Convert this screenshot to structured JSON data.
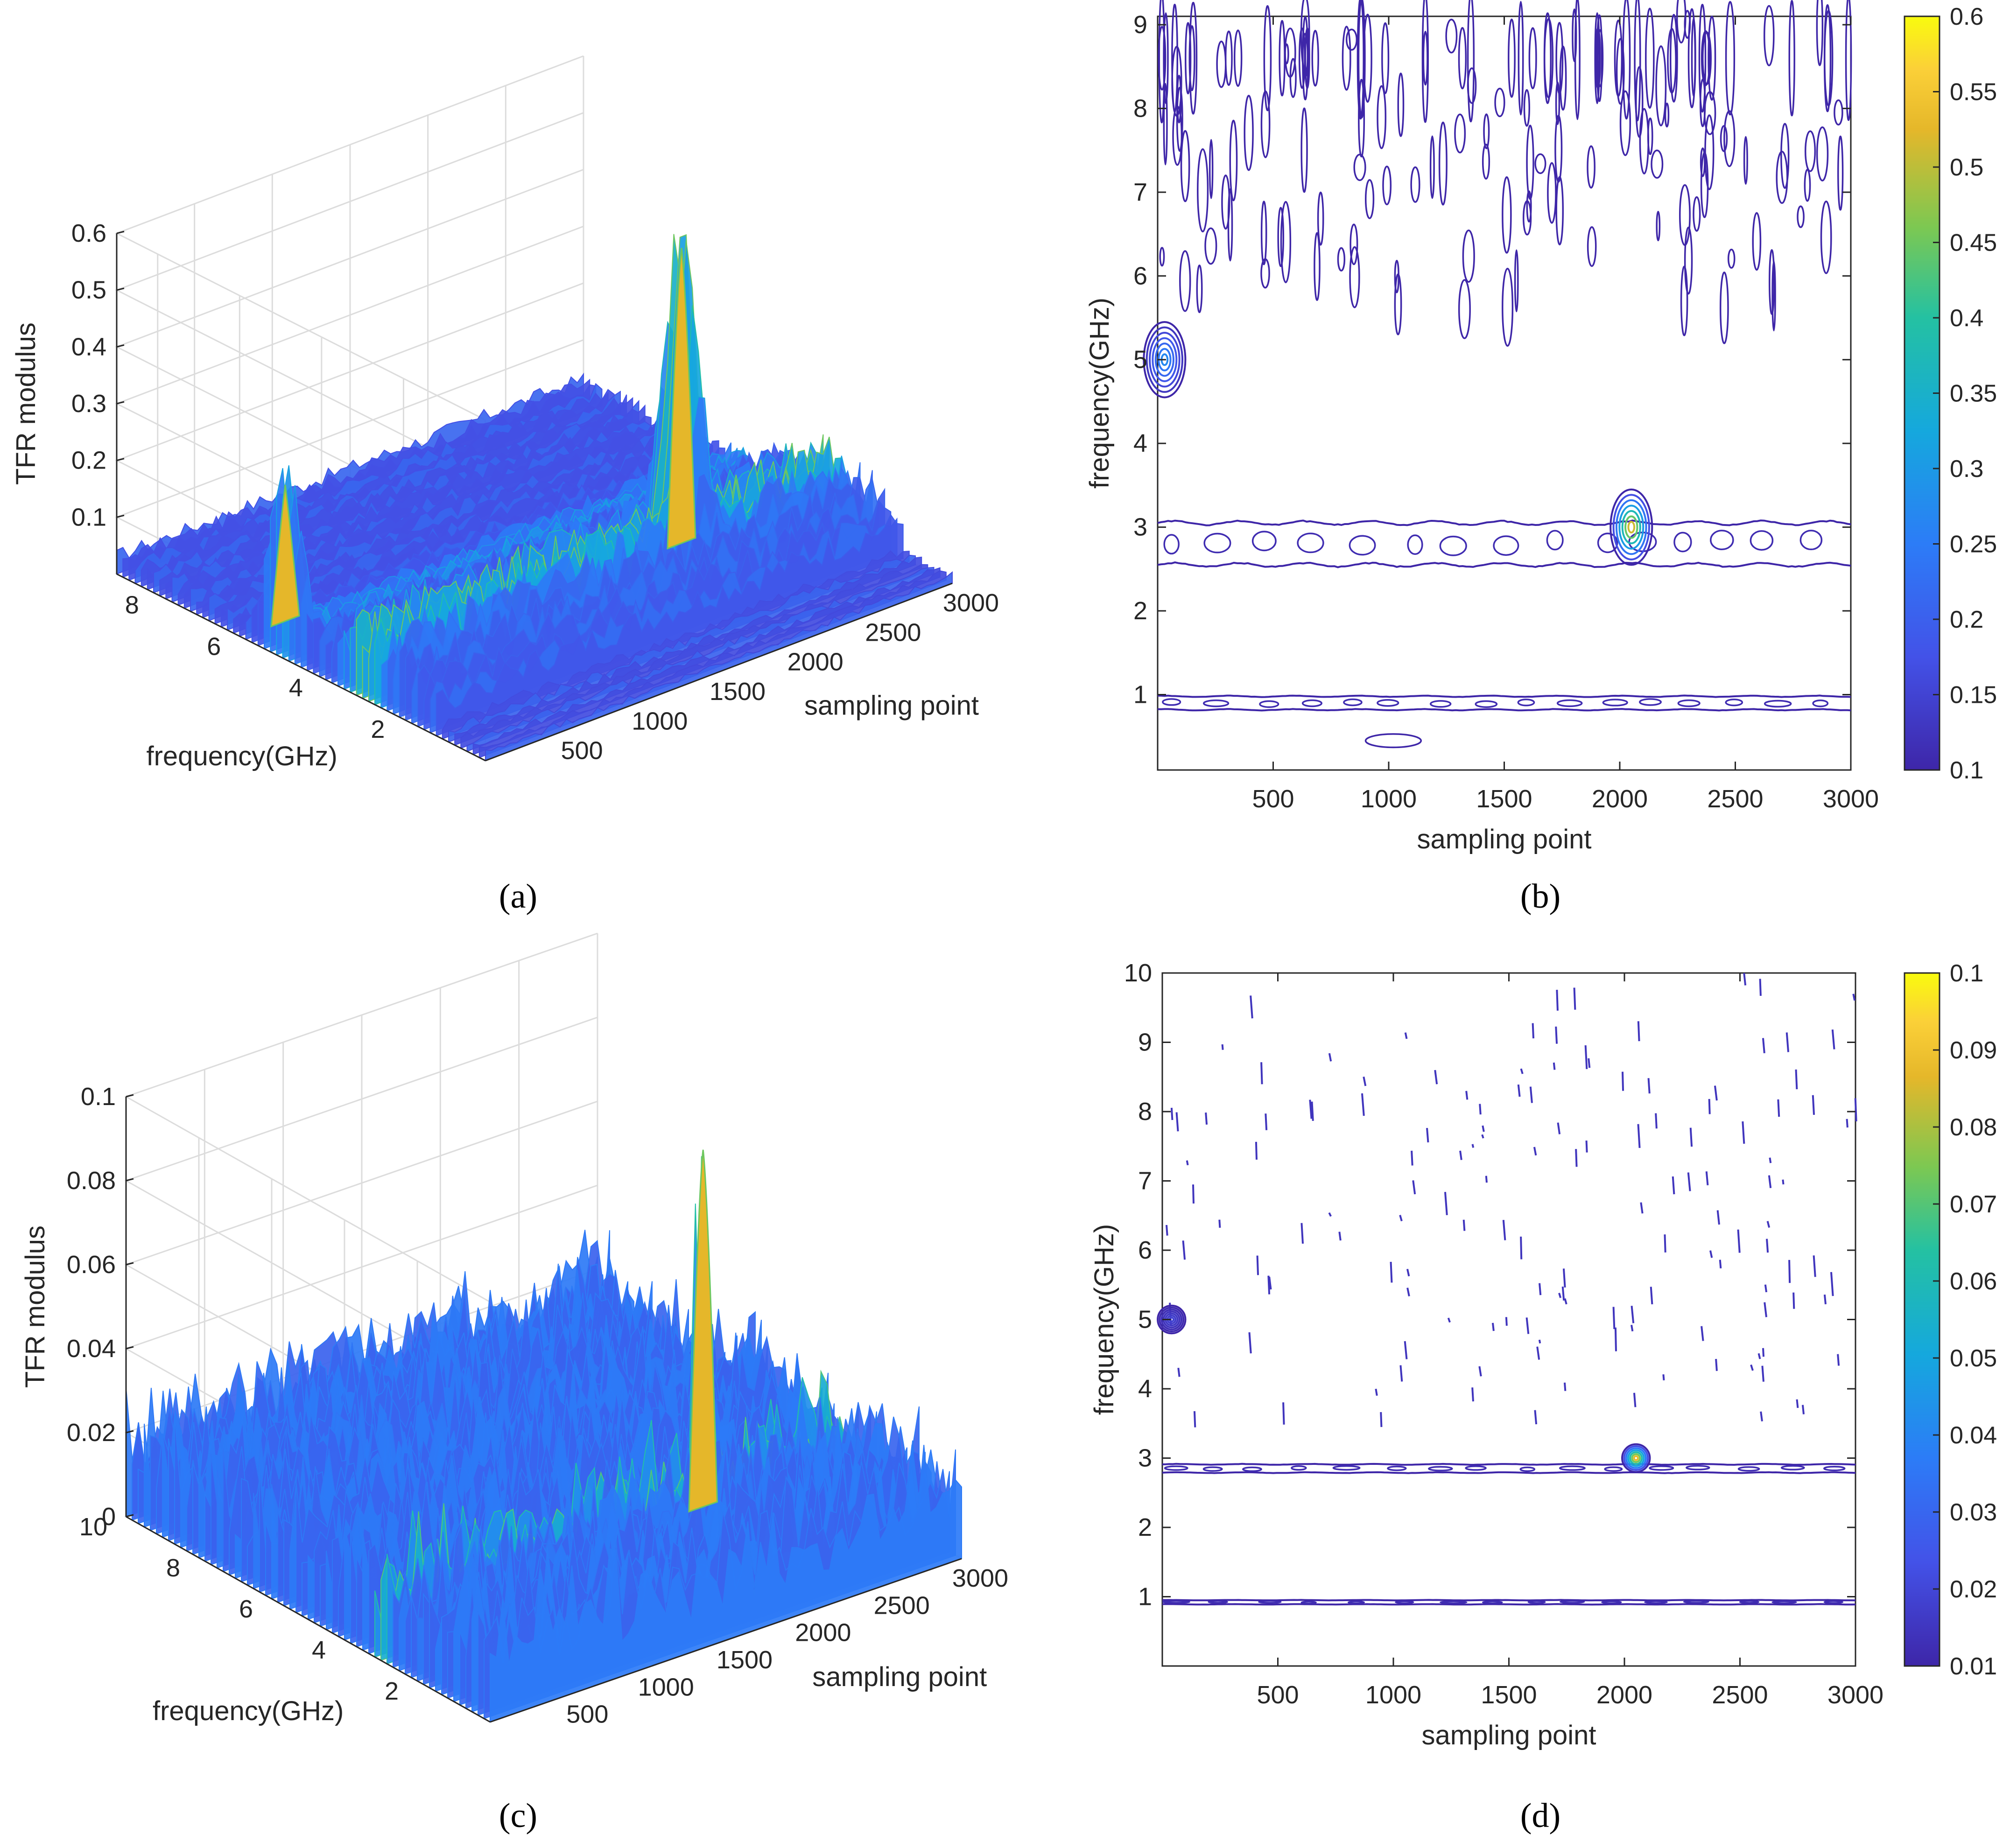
{
  "captions": [
    "(a)",
    "(b)",
    "(c)",
    "(d)"
  ],
  "chart_data": [
    {
      "id": "a",
      "type": "surface3d",
      "xlabel": "sampling point",
      "ylabel": "frequency(GHz)",
      "zlabel": "TFR modulus",
      "xlim": [
        0,
        3000
      ],
      "ylim": [
        0,
        9
      ],
      "zlim": [
        0,
        0.6
      ],
      "xticks": [
        "500",
        "1000",
        "1500",
        "2000",
        "2500",
        "3000"
      ],
      "yticks": [
        "2",
        "4",
        "6",
        "8"
      ],
      "zticks": [
        "0.1",
        "0.2",
        "0.3",
        "0.4",
        "0.5",
        "0.6"
      ],
      "peaks": [
        {
          "x": 2050,
          "y": 3.0,
          "z": 0.58
        },
        {
          "x": 30,
          "y": 5.0,
          "z": 0.3
        }
      ],
      "colormap": "parula",
      "grid": true
    },
    {
      "id": "b",
      "type": "contour",
      "xlabel": "sampling point",
      "ylabel": "frequency(GHz)",
      "xlim": [
        0,
        3000
      ],
      "ylim": [
        0.1,
        9.1
      ],
      "xticks": [
        "500",
        "1000",
        "1500",
        "2000",
        "2500",
        "3000"
      ],
      "yticks": [
        "1",
        "2",
        "3",
        "4",
        "5",
        "6",
        "7",
        "8",
        "9"
      ],
      "colorbar": {
        "ticks": [
          "0.1",
          "0.15",
          "0.2",
          "0.25",
          "0.3",
          "0.35",
          "0.4",
          "0.45",
          "0.5",
          "0.55",
          "0.6"
        ],
        "range": [
          0.1,
          0.6
        ]
      },
      "bands": [
        {
          "freq": 2.8,
          "halfwidth": 0.25
        },
        {
          "freq": 0.9,
          "halfwidth": 0.08
        }
      ],
      "hotspots": [
        {
          "x": 2050,
          "y": 3.0,
          "peak": 0.58
        },
        {
          "x": 30,
          "y": 5.0,
          "peak": 0.3
        }
      ],
      "colormap": "parula"
    },
    {
      "id": "c",
      "type": "surface3d",
      "xlabel": "sampling point",
      "ylabel": "frequency(GHz)",
      "zlabel": "TFR modulus",
      "xlim": [
        0,
        3000
      ],
      "ylim": [
        0,
        10
      ],
      "zlim": [
        0,
        0.1
      ],
      "xticks": [
        "500",
        "1000",
        "1500",
        "2000",
        "2500",
        "3000"
      ],
      "yticks": [
        "2",
        "4",
        "6",
        "8",
        "10"
      ],
      "zticks": [
        "0",
        "0.02",
        "0.04",
        "0.06",
        "0.08",
        "0.1"
      ],
      "peaks": [
        {
          "x": 2050,
          "y": 3.0,
          "z": 0.095
        }
      ],
      "colormap": "parula",
      "grid": true
    },
    {
      "id": "d",
      "type": "contour",
      "xlabel": "sampling point",
      "ylabel": "frequency(GHz)",
      "xlim": [
        0,
        3000
      ],
      "ylim": [
        0,
        10
      ],
      "xticks": [
        "500",
        "1000",
        "1500",
        "2000",
        "2500",
        "3000"
      ],
      "yticks": [
        "1",
        "2",
        "3",
        "4",
        "5",
        "6",
        "7",
        "8",
        "9",
        "10"
      ],
      "colorbar": {
        "ticks": [
          "0.01",
          "0.02",
          "0.03",
          "0.04",
          "0.05",
          "0.06",
          "0.07",
          "0.08",
          "0.09",
          "0.1"
        ],
        "range": [
          0.01,
          0.1
        ]
      },
      "bands": [
        {
          "freq": 2.85,
          "halfwidth": 0.06
        },
        {
          "freq": 0.92,
          "halfwidth": 0.03
        }
      ],
      "hotspots": [
        {
          "x": 2050,
          "y": 3.0,
          "peak": 0.1
        },
        {
          "x": 40,
          "y": 5.0,
          "peak": 0.02
        }
      ],
      "colormap": "parula"
    }
  ]
}
